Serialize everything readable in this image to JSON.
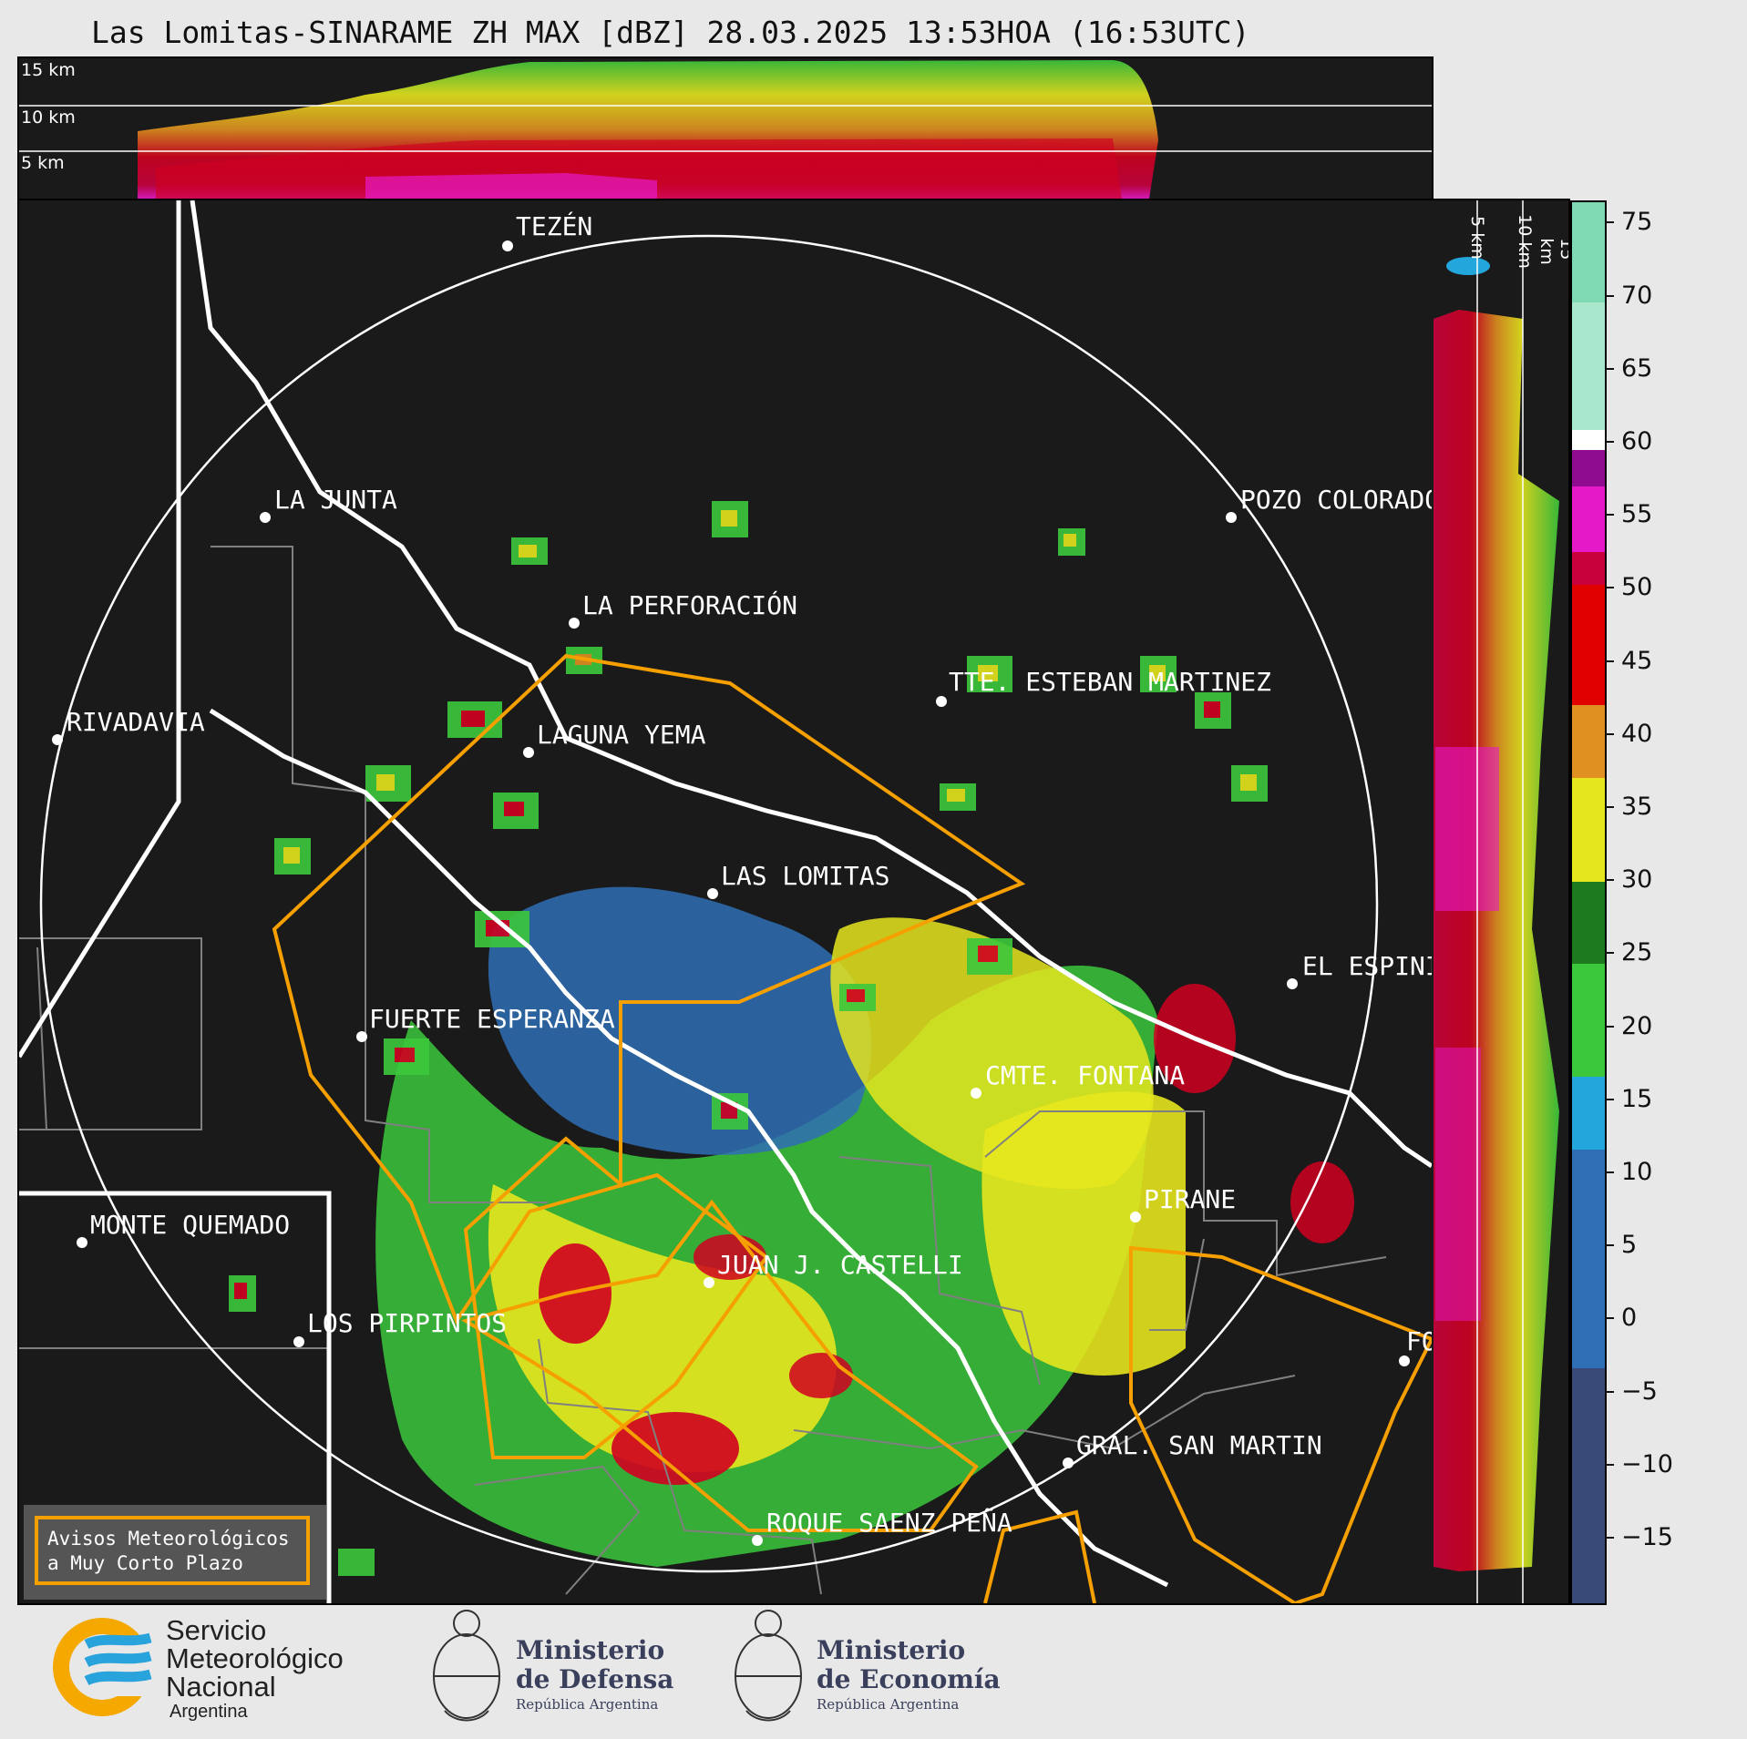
{
  "title": "Las Lomitas-SINARAME ZH MAX [dBZ] 28.03.2025 13:53HOA (16:53UTC)",
  "top_panel": {
    "altitudes": [
      "15 km",
      "10 km",
      "5 km"
    ]
  },
  "side_panel": {
    "altitudes": [
      "5 km",
      "10 km",
      "15 km"
    ]
  },
  "colorbar": {
    "unit": "dBZ",
    "ticks": [
      "75",
      "70",
      "65",
      "60",
      "55",
      "50",
      "45",
      "40",
      "35",
      "30",
      "25",
      "20",
      "15",
      "10",
      "5",
      "0",
      "−5",
      "−10",
      "−15"
    ],
    "colors": {
      "mint_high": "#7fd9b3",
      "mint_mid": "#a9e8cc",
      "white": "#ffffff",
      "purple": "#8f0b8f",
      "magenta": "#e619c8",
      "crimson": "#c8003c",
      "red": "#e00000",
      "orange": "#e09020",
      "yellow": "#e6e61e",
      "green_dark": "#1e7a1e",
      "green": "#3cc83c",
      "cyan": "#23a6dc",
      "blue": "#2f6fb5",
      "slate": "#3a4a78"
    }
  },
  "places": [
    {
      "name": "TEZÉN"
    },
    {
      "name": "LA JUNTA"
    },
    {
      "name": "POZO COLORADO"
    },
    {
      "name": "LA PERFORACIÓN"
    },
    {
      "name": "RIVADAVIA"
    },
    {
      "name": "TTE. ESTEBAN MARTINEZ"
    },
    {
      "name": "LAGUNA YEMA"
    },
    {
      "name": "LAS LOMITAS"
    },
    {
      "name": "EL ESPINILLO"
    },
    {
      "name": "FUERTE ESPERANZA"
    },
    {
      "name": "CMTE. FONTANA"
    },
    {
      "name": "PIRANE"
    },
    {
      "name": "MONTE QUEMADO"
    },
    {
      "name": "JUAN J. CASTELLI"
    },
    {
      "name": "LOS PIRPINTOS"
    },
    {
      "name": "GRAL. SAN MARTIN"
    },
    {
      "name": "ROQUE SAENZ PEÑA"
    },
    {
      "name": "FORMOSA"
    }
  ],
  "avisos": {
    "line1": "Avisos Meteorológicos",
    "line2": "a Muy Corto Plazo"
  },
  "logos": {
    "smn": {
      "line1": "Servicio",
      "line2": "Meteorológico",
      "line3": "Nacional",
      "line4": "Argentina"
    },
    "defensa": {
      "line1": "Ministerio",
      "line2": "de Defensa",
      "line3": "República Argentina"
    },
    "economia": {
      "line1": "Ministerio",
      "line2": "de Economía",
      "line3": "República Argentina"
    }
  },
  "map_style": {
    "range_ring_color": "#ffffff",
    "warning_polygon_color": "#f5a000",
    "boundary_color": "#ffffff",
    "department_line_color": "#808080"
  }
}
